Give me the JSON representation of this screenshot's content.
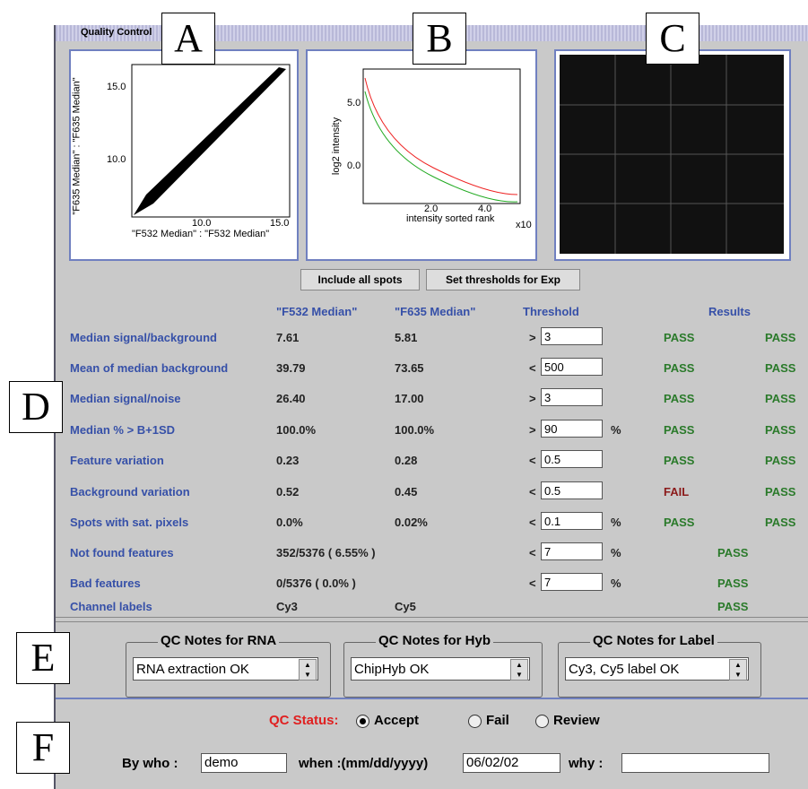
{
  "window_title": "Quality Control",
  "panel_labels": [
    "A",
    "B",
    "C",
    "D",
    "E",
    "F"
  ],
  "plot_a": {
    "yticks": [
      "15.0",
      "10.0"
    ],
    "xticks": [
      "10.0",
      "15.0"
    ],
    "xlabel": "\"F532 Median\" : \"F532 Median\"",
    "ylabel": "\"F635 Median\" : \"F635 Median\""
  },
  "plot_b": {
    "yticks": [
      "5.0",
      "0.0"
    ],
    "xticks": [
      "2.0",
      "4.0"
    ],
    "xlabel": "intensity sorted rank",
    "ylabel": "log2 intensity",
    "exponent": "x10"
  },
  "buttons": [
    "Include all spots",
    "Set thresholds for Exp"
  ],
  "table": {
    "headers": [
      "\"F532 Median\"",
      "\"F635 Median\"",
      "Threshold",
      "Results"
    ],
    "rows": [
      {
        "label": "Median signal/background",
        "f532": "7.61",
        "f635": "5.81",
        "op": ">",
        "threshold": "3",
        "results": [
          "PASS",
          "PASS"
        ]
      },
      {
        "label": "Mean of median background",
        "f532": "39.79",
        "f635": "73.65",
        "op": "<",
        "threshold": "500",
        "results": [
          "PASS",
          "PASS"
        ]
      },
      {
        "label": "Median signal/noise",
        "f532": "26.40",
        "f635": "17.00",
        "op": ">",
        "threshold": "3",
        "results": [
          "PASS",
          "PASS"
        ]
      },
      {
        "label": "Median % > B+1SD",
        "f532": "100.0%",
        "f635": "100.0%",
        "op": ">",
        "threshold": "90",
        "unit": "%",
        "results": [
          "PASS",
          "PASS"
        ]
      },
      {
        "label": "Feature variation",
        "f532": "0.23",
        "f635": "0.28",
        "op": "<",
        "threshold": "0.5",
        "results": [
          "PASS",
          "PASS"
        ]
      },
      {
        "label": "Background variation",
        "f532": "0.52",
        "f635": "0.45",
        "op": "<",
        "threshold": "0.5",
        "results": [
          "FAIL",
          "PASS"
        ]
      },
      {
        "label": "Spots with sat. pixels",
        "f532": "0.0%",
        "f635": "0.02%",
        "op": "<",
        "threshold": "0.1",
        "unit": "%",
        "results": [
          "PASS",
          "PASS"
        ]
      },
      {
        "label": "Not found features",
        "value": "352/5376 ( 6.55% )",
        "op": "<",
        "threshold": "7",
        "unit": "%",
        "results": [
          "PASS"
        ]
      },
      {
        "label": "Bad features",
        "value": "0/5376 ( 0.0% )",
        "op": "<",
        "threshold": "7",
        "unit": "%",
        "results": [
          "PASS"
        ]
      },
      {
        "label": "Channel labels",
        "f532": "Cy3",
        "f635": "Cy5",
        "results": [
          "PASS"
        ]
      }
    ]
  },
  "notes": [
    {
      "title": "QC Notes for RNA",
      "value": "RNA extraction OK"
    },
    {
      "title": "QC Notes for Hyb",
      "value": "ChipHyb OK"
    },
    {
      "title": "QC Notes for Label",
      "value": "Cy3, Cy5 label OK"
    }
  ],
  "status": {
    "label": "QC Status:",
    "options": [
      "Accept",
      "Fail",
      "Review"
    ]
  },
  "signoff": {
    "by_label": "By who :",
    "by": "demo",
    "when_label": "when :(mm/dd/yyyy)",
    "when": "06/02/02",
    "why_label": "why :"
  }
}
